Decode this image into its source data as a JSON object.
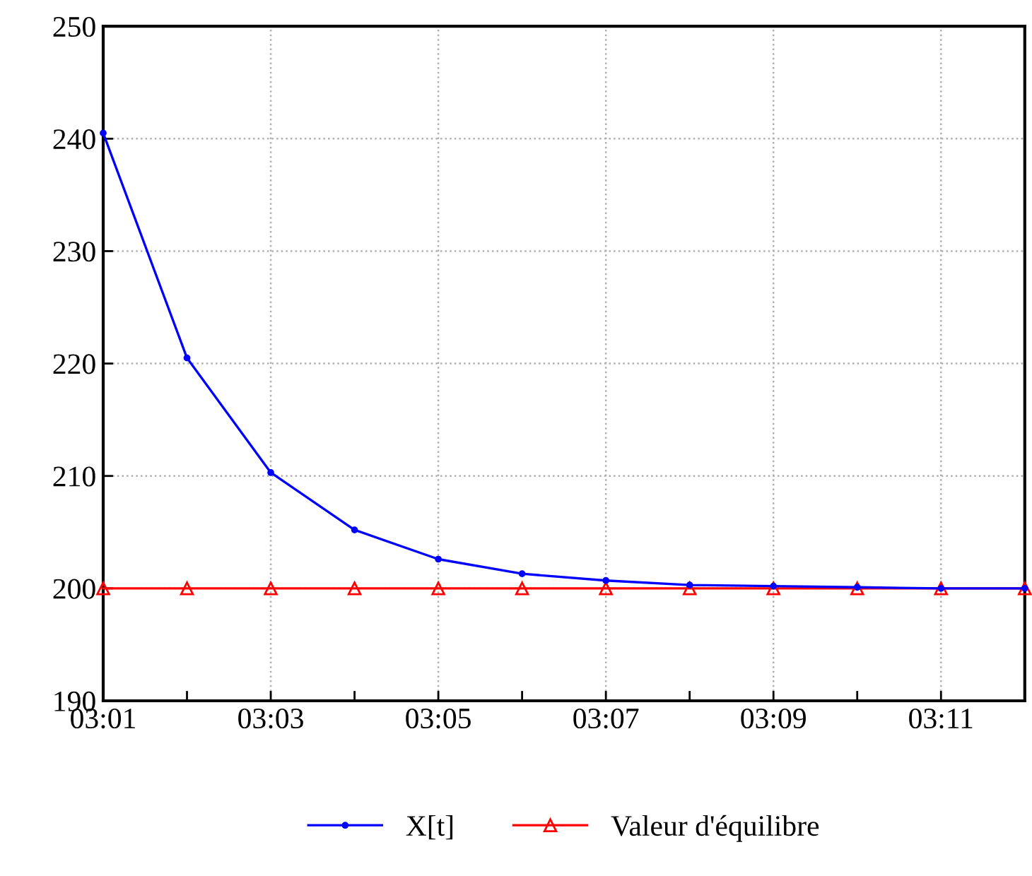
{
  "chart_data": {
    "type": "line",
    "categories": [
      "03:01",
      null,
      "03:03",
      null,
      "03:05",
      null,
      "03:07",
      null,
      "03:09",
      null,
      "03:11",
      null
    ],
    "series": [
      {
        "name": "X[t]",
        "color": "#0000ff",
        "marker": "circle",
        "values": [
          240.5,
          220.5,
          210.3,
          205.2,
          202.6,
          201.3,
          200.7,
          200.3,
          200.2,
          200.1,
          200.0,
          200.0
        ]
      },
      {
        "name": "Valeur d'équilibre",
        "color": "#ff0000",
        "marker": "triangle",
        "values": [
          200,
          200,
          200,
          200,
          200,
          200,
          200,
          200,
          200,
          200,
          200,
          200
        ]
      }
    ],
    "ylim": [
      190,
      250
    ],
    "yticks": [
      190,
      200,
      210,
      220,
      230,
      240,
      250
    ],
    "grid": true,
    "legend": "bottom",
    "line_style": "solid"
  }
}
